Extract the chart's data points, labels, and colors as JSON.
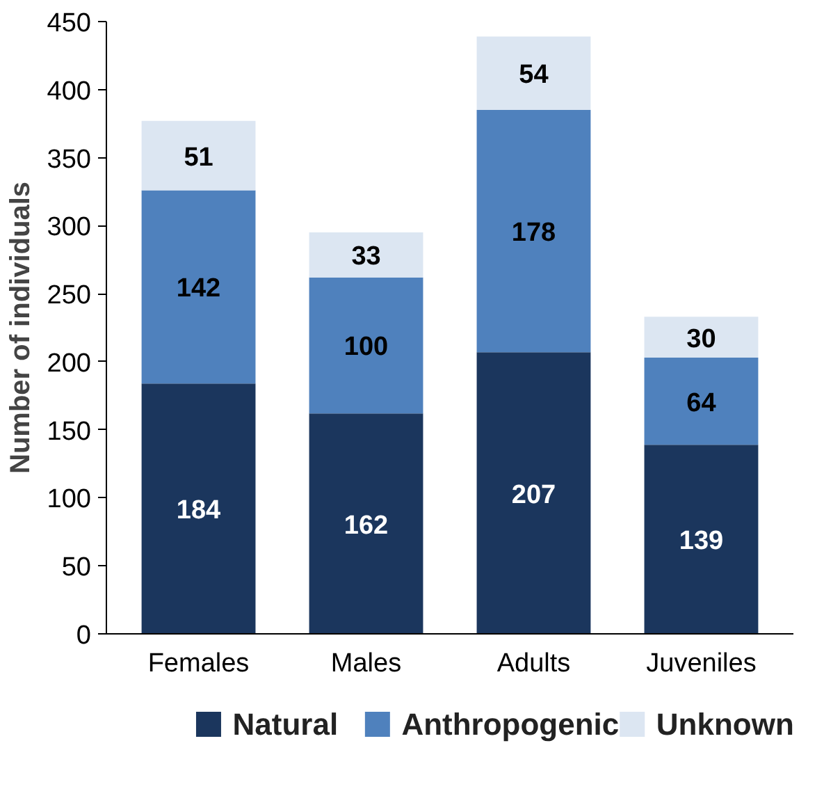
{
  "chart_data": {
    "type": "bar",
    "stacked": true,
    "ylabel": "Number of individuals",
    "categories": [
      "Females",
      "Males",
      "Adults",
      "Juveniles"
    ],
    "series": [
      {
        "name": "Natural",
        "color": "#1b365d",
        "values": [
          184,
          162,
          207,
          139
        ]
      },
      {
        "name": "Anthropogenic",
        "color": "#4f81bd",
        "values": [
          142,
          100,
          178,
          64
        ]
      },
      {
        "name": "Unknown",
        "color": "#dce6f2",
        "values": [
          51,
          33,
          54,
          30
        ]
      }
    ],
    "ylim": [
      0,
      450
    ],
    "yticks": [
      0,
      50,
      100,
      150,
      200,
      250,
      300,
      350,
      400,
      450
    ],
    "data_labels": true,
    "legend": "bottom",
    "grid": false
  }
}
